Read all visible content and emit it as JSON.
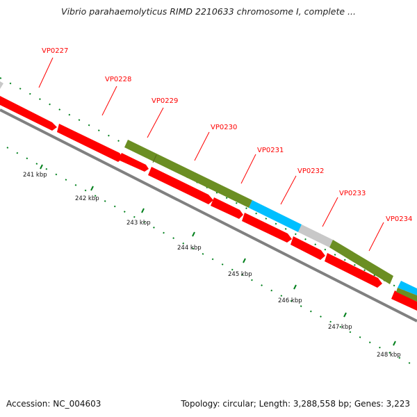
{
  "title": "Vibrio parahaemolyticus RIMD 2210633 chromosome I, complete ...",
  "footer": {
    "accession_text": "Accession: NC_004603",
    "summary_text": "Topology: circular; Length: 3,288,558 bp; Genes: 3,223"
  },
  "colors": {
    "cds": "#ff0000",
    "category_olive": "#6b8e23",
    "category_cyan": "#00bfff",
    "category_grey": "#c8c8c8",
    "tick": "#00801c",
    "backbone": "#808080",
    "label": "#ff0000"
  },
  "gene_labels": [
    "VP0227",
    "VP0228",
    "VP0229",
    "VP0230",
    "VP0231",
    "VP0232",
    "VP0233",
    "VP0234"
  ],
  "scale_labels": [
    "241 kbp",
    "242 kbp",
    "243 kbp",
    "244 kbp",
    "245 kbp",
    "246 kbp",
    "247 kbp",
    "248 kbp"
  ]
}
